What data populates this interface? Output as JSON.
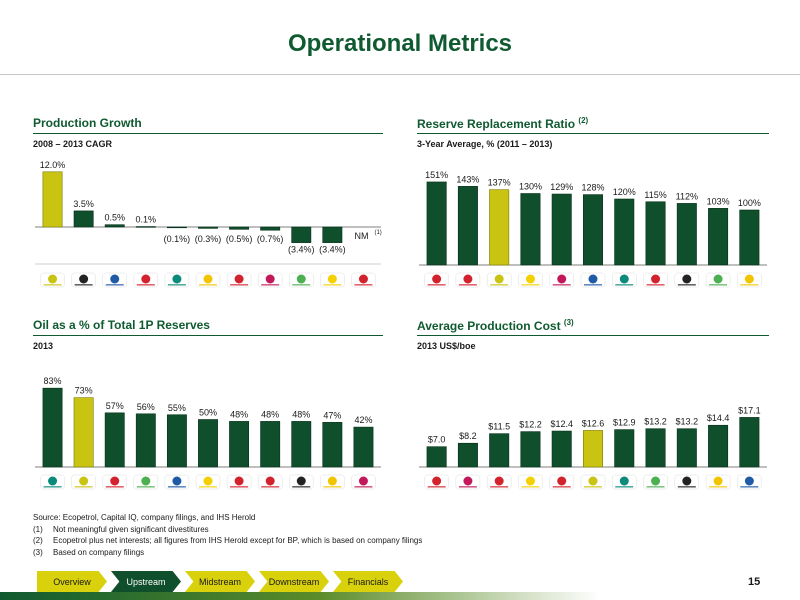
{
  "slide": {
    "title": "Operational Metrics",
    "page_number": "15"
  },
  "colors": {
    "bar": "#0f4f2c",
    "highlight": "#c9c312",
    "accent": "#0f5a30"
  },
  "panels": {
    "production": {
      "title": "Production Growth",
      "subtitle": "2008 – 2013 CAGR"
    },
    "reserve": {
      "title": "Reserve Replacement Ratio",
      "title_note": "(2)",
      "subtitle": "3-Year Average, % (2011 – 2013)"
    },
    "oil": {
      "title": "Oil as a % of Total 1P Reserves",
      "subtitle": "2013"
    },
    "cost": {
      "title": "Average Production Cost",
      "title_note": "(3)",
      "subtitle": "2013 US$/boe"
    }
  },
  "chart_data": [
    {
      "id": "production",
      "type": "bar",
      "values": [
        12.0,
        3.5,
        0.5,
        0.1,
        -0.1,
        -0.3,
        -0.5,
        -0.7,
        -3.4,
        -3.4,
        null
      ],
      "labels": [
        "12.0%",
        "3.5%",
        "0.5%",
        "0.1%",
        "(0.1%)",
        "(0.3%)",
        "(0.5%)",
        "(0.7%)",
        "(3.4%)",
        "(3.4%)",
        "NM"
      ],
      "label_note": "(1)",
      "highlight_index": 0,
      "logos": [
        "ecopetrol-logo",
        "anadarko-logo",
        "chevron-logo",
        "exxon-logo",
        "petronas-logo",
        "shell-logo",
        "total-logo",
        "statoil-logo",
        "bp-logo",
        "eni-logo",
        "conocophillips-logo"
      ]
    },
    {
      "id": "reserve",
      "type": "bar",
      "values": [
        151,
        143,
        137,
        130,
        129,
        128,
        120,
        115,
        112,
        103,
        100
      ],
      "labels": [
        "151%",
        "143%",
        "137%",
        "130%",
        "129%",
        "128%",
        "120%",
        "115%",
        "112%",
        "103%",
        "100%"
      ],
      "highlight_index": 2,
      "logos": [
        "conocophillips-logo",
        "total-logo",
        "ecopetrol-logo",
        "eni-logo",
        "statoil-logo",
        "chevron-logo",
        "petronas-logo",
        "exxon-logo",
        "anadarko-logo",
        "bp-logo",
        "shell-logo"
      ]
    },
    {
      "id": "oil",
      "type": "bar",
      "values": [
        83,
        73,
        57,
        56,
        55,
        50,
        48,
        48,
        48,
        47,
        42
      ],
      "labels": [
        "83%",
        "73%",
        "57%",
        "56%",
        "55%",
        "50%",
        "48%",
        "48%",
        "48%",
        "47%",
        "42%"
      ],
      "highlight_index": 1,
      "logos": [
        "petronas-logo",
        "ecopetrol-logo",
        "conocophillips-logo",
        "bp-logo",
        "chevron-logo",
        "eni-logo",
        "total-logo",
        "exxon-logo",
        "anadarko-logo",
        "shell-logo",
        "statoil-logo"
      ]
    },
    {
      "id": "cost",
      "type": "bar",
      "values": [
        7.0,
        8.2,
        11.5,
        12.2,
        12.4,
        12.6,
        12.9,
        13.2,
        13.2,
        14.4,
        17.1
      ],
      "labels": [
        "$7.0",
        "$8.2",
        "$11.5",
        "$12.2",
        "$12.4",
        "$12.6",
        "$12.9",
        "$13.2",
        "$13.2",
        "$14.4",
        "$17.1"
      ],
      "highlight_index": 5,
      "logos": [
        "total-logo",
        "statoil-logo",
        "exxon-logo",
        "eni-logo",
        "conocophillips-logo",
        "ecopetrol-logo",
        "petronas-logo",
        "bp-logo",
        "anadarko-logo",
        "shell-logo",
        "chevron-logo"
      ]
    }
  ],
  "footnotes": {
    "source": "Source: Ecopetrol, Capital IQ, company filings, and IHS Herold",
    "notes": [
      {
        "num": "(1)",
        "text": "Not meaningful given significant divestitures"
      },
      {
        "num": "(2)",
        "text": "Ecopetrol plus net interests; all figures from IHS Herold except for BP, which is based on company filings"
      },
      {
        "num": "(3)",
        "text": "Based on company filings"
      }
    ]
  },
  "nav": {
    "items": [
      "Overview",
      "Upstream",
      "Midstream",
      "Downstream",
      "Financials"
    ],
    "active_index": 1
  }
}
